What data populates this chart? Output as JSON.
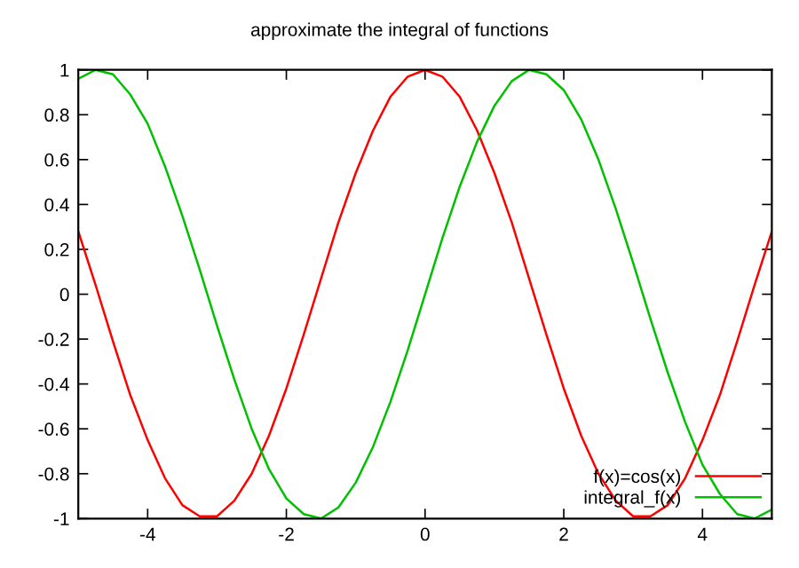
{
  "chart_data": {
    "type": "line",
    "title": "approximate the integral of functions",
    "x": [
      -5,
      -4.75,
      -4.5,
      -4.25,
      -4,
      -3.75,
      -3.5,
      -3.25,
      -3,
      -2.75,
      -2.5,
      -2.25,
      -2,
      -1.75,
      -1.5,
      -1.25,
      -1,
      -0.75,
      -0.5,
      -0.25,
      0,
      0.25,
      0.5,
      0.75,
      1,
      1.25,
      1.5,
      1.75,
      2,
      2.25,
      2.5,
      2.75,
      3,
      3.25,
      3.5,
      3.75,
      4,
      4.25,
      4.5,
      4.75,
      5
    ],
    "series": [
      {
        "name": "f(x)=cos(x)",
        "color": "#ff0000",
        "values": [
          0.28,
          0.04,
          -0.21,
          -0.45,
          -0.65,
          -0.82,
          -0.94,
          -0.99,
          -0.99,
          -0.92,
          -0.8,
          -0.63,
          -0.42,
          -0.18,
          0.07,
          0.32,
          0.54,
          0.73,
          0.88,
          0.97,
          1,
          0.97,
          0.88,
          0.73,
          0.54,
          0.32,
          0.07,
          -0.18,
          -0.42,
          -0.63,
          -0.8,
          -0.92,
          -0.99,
          -0.99,
          -0.94,
          -0.82,
          -0.65,
          -0.45,
          -0.21,
          0.04,
          0.28
        ]
      },
      {
        "name": "integral_f(x)",
        "color": "#00c000",
        "values": [
          0.96,
          1,
          0.98,
          0.89,
          0.76,
          0.57,
          0.35,
          0.11,
          -0.14,
          -0.38,
          -0.6,
          -0.78,
          -0.91,
          -0.98,
          -1,
          -0.95,
          -0.84,
          -0.68,
          -0.48,
          -0.25,
          0,
          0.25,
          0.48,
          0.68,
          0.84,
          0.95,
          1,
          0.98,
          0.91,
          0.78,
          0.6,
          0.38,
          0.14,
          -0.11,
          -0.35,
          -0.57,
          -0.76,
          -0.89,
          -0.98,
          -1,
          -0.96
        ]
      }
    ],
    "xlim": [
      -5,
      5
    ],
    "xticks": [
      -4,
      -2,
      0,
      2,
      4
    ],
    "ylim": [
      -1,
      1
    ],
    "yticks": [
      -1,
      -0.8,
      -0.6,
      -0.4,
      -0.2,
      0,
      0.2,
      0.4,
      0.6,
      0.8,
      1
    ],
    "legend": "bottom right",
    "grid": false,
    "marker": "none",
    "line_style": "solid"
  }
}
